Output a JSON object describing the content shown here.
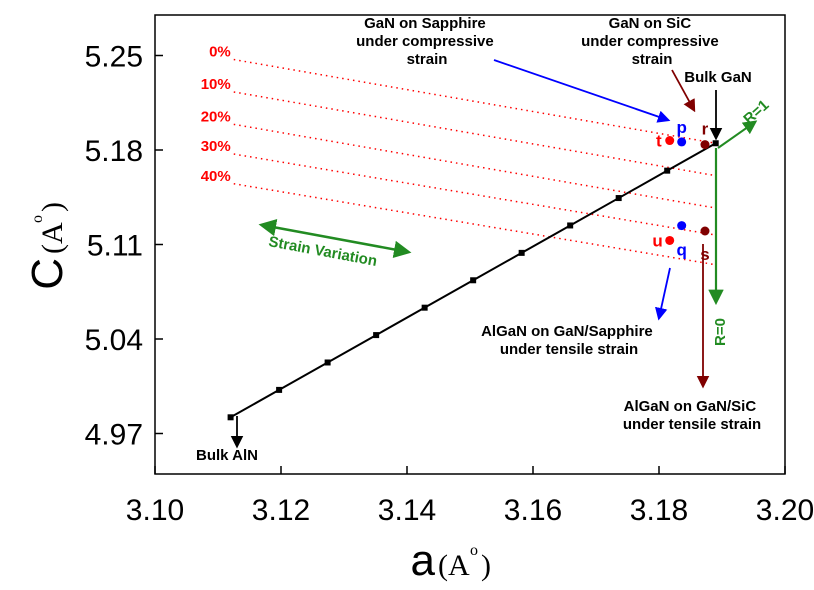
{
  "chart_data": {
    "type": "line",
    "xlabel": "a",
    "xunit": "A",
    "xunit_sup": "o",
    "ylabel": "C",
    "yunit": "A",
    "yunit_sup": "o",
    "xlim": [
      3.1,
      3.2
    ],
    "ylim": [
      4.94,
      5.28
    ],
    "xticks": [
      "3.10",
      "3.12",
      "3.14",
      "3.16",
      "3.18",
      "3.20"
    ],
    "xtick_values": [
      3.1,
      3.12,
      3.14,
      3.16,
      3.18,
      3.2
    ],
    "yticks": [
      "4.97",
      "5.04",
      "5.11",
      "5.18",
      "5.25"
    ],
    "ytick_values": [
      4.97,
      5.04,
      5.11,
      5.18,
      5.25
    ],
    "grid": false,
    "colors": {
      "line": "#000000",
      "strain": "#ff0000",
      "relax": "#228b22",
      "sapphire": "#0000ff",
      "sic": "#800000"
    },
    "vegard_line": {
      "x": [
        3.112,
        3.1197,
        3.1274,
        3.1351,
        3.1428,
        3.1505,
        3.1582,
        3.1659,
        3.1736,
        3.1813,
        3.189
      ],
      "y": [
        4.982,
        5.0023,
        5.0226,
        5.0429,
        5.0632,
        5.0835,
        5.1038,
        5.1241,
        5.1444,
        5.1647,
        5.185
      ]
    },
    "strain_lines": [
      {
        "label": "0%",
        "x": [
          3.1125,
          3.189
        ],
        "y": [
          5.247,
          5.185
        ]
      },
      {
        "label": "10%",
        "x": [
          3.1125,
          3.189
        ],
        "y": [
          5.223,
          5.161
        ]
      },
      {
        "label": "20%",
        "x": [
          3.1125,
          3.189
        ],
        "y": [
          5.199,
          5.137
        ]
      },
      {
        "label": "30%",
        "x": [
          3.1125,
          3.189
        ],
        "y": [
          5.177,
          5.117
        ]
      },
      {
        "label": "40%",
        "x": [
          3.1125,
          3.189
        ],
        "y": [
          5.155,
          5.095
        ]
      }
    ],
    "points": [
      {
        "label": "p",
        "x": 3.1836,
        "y": 5.186,
        "color": "#0000ff"
      },
      {
        "label": "t",
        "x": 3.1817,
        "y": 5.187,
        "color": "#ff0000"
      },
      {
        "label": "r",
        "x": 3.1873,
        "y": 5.184,
        "color": "#800000"
      },
      {
        "label": "q",
        "x": 3.1836,
        "y": 5.124,
        "color": "#0000ff"
      },
      {
        "label": "u",
        "x": 3.1817,
        "y": 5.113,
        "color": "#ff0000"
      },
      {
        "label": "s",
        "x": 3.1873,
        "y": 5.12,
        "color": "#800000"
      }
    ],
    "annotations": {
      "gan_sapphire": [
        "GaN on Sapphire",
        "under compressive",
        "strain"
      ],
      "gan_sic": [
        "GaN on SiC",
        "under compressive",
        "strain"
      ],
      "bulk_gan": "Bulk GaN",
      "bulk_aln": "Bulk AlN",
      "algan_sapphire": [
        "AlGaN on GaN/Sapphire",
        "under tensile strain"
      ],
      "algan_sic": [
        "AlGaN on GaN/SiC",
        "under tensile strain"
      ],
      "strain_variation": "Strain Variation",
      "r1": "R=1",
      "r0": "R=0"
    }
  }
}
